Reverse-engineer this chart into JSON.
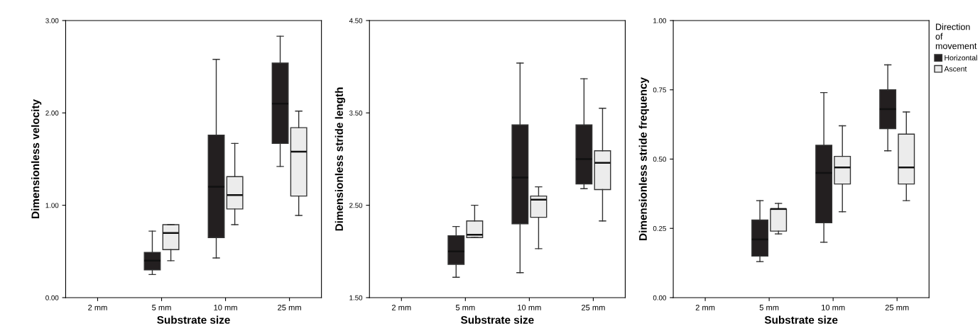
{
  "chart_data": [
    {
      "type": "box",
      "xlabel": "Substrate size",
      "ylabel": "Dimensionless velocity",
      "categories": [
        "2 mm",
        "5 mm",
        "10 mm",
        "25 mm"
      ],
      "ylim": [
        0,
        3
      ],
      "yticks": [
        {
          "value": 0,
          "label": "0.00"
        },
        {
          "value": 1,
          "label": "1.00"
        },
        {
          "value": 2,
          "label": "2.00"
        },
        {
          "value": 3,
          "label": "3.00"
        }
      ],
      "grid": false,
      "legend": false,
      "series": [
        {
          "color": "#231f20",
          "boxes": [
            null,
            {
              "low": 0.25,
              "q1": 0.3,
              "median": 0.4,
              "q3": 0.49,
              "high": 0.72
            },
            {
              "low": 0.43,
              "q1": 0.65,
              "median": 1.2,
              "q3": 1.76,
              "high": 2.58
            },
            {
              "low": 1.42,
              "q1": 1.67,
              "median": 2.1,
              "q3": 2.54,
              "high": 2.83
            }
          ]
        },
        {
          "color": "#ececec",
          "boxes": [
            null,
            {
              "low": 0.4,
              "q1": 0.52,
              "median": 0.7,
              "q3": 0.79,
              "high": 0.79
            },
            {
              "low": 0.79,
              "q1": 0.96,
              "median": 1.11,
              "q3": 1.31,
              "high": 1.67
            },
            {
              "low": 0.89,
              "q1": 1.1,
              "median": 1.58,
              "q3": 1.84,
              "high": 2.02
            }
          ]
        }
      ]
    },
    {
      "type": "box",
      "xlabel": "Substrate size",
      "ylabel": "Dimensionless stride length",
      "categories": [
        "2 mm",
        "5 mm",
        "10 mm",
        "25 mm"
      ],
      "ylim": [
        1.5,
        4.5
      ],
      "yticks": [
        {
          "value": 1.5,
          "label": "1.50"
        },
        {
          "value": 2.5,
          "label": "2.50"
        },
        {
          "value": 3.5,
          "label": "3.50"
        },
        {
          "value": 4.5,
          "label": "4.50"
        }
      ],
      "grid": false,
      "legend": false,
      "series": [
        {
          "color": "#231f20",
          "boxes": [
            null,
            {
              "low": 1.72,
              "q1": 1.86,
              "median": 2.0,
              "q3": 2.17,
              "high": 2.27
            },
            {
              "low": 1.77,
              "q1": 2.3,
              "median": 2.8,
              "q3": 3.37,
              "high": 4.04
            },
            {
              "low": 2.68,
              "q1": 2.73,
              "median": 3.0,
              "q3": 3.37,
              "high": 3.87
            }
          ]
        },
        {
          "color": "#ececec",
          "boxes": [
            null,
            {
              "low": 2.15,
              "q1": 2.15,
              "median": 2.18,
              "q3": 2.33,
              "high": 2.5
            },
            {
              "low": 2.03,
              "q1": 2.37,
              "median": 2.56,
              "q3": 2.6,
              "high": 2.7
            },
            {
              "low": 2.33,
              "q1": 2.67,
              "median": 2.96,
              "q3": 3.09,
              "high": 3.55
            }
          ]
        }
      ]
    },
    {
      "type": "box",
      "xlabel": "Substrate size",
      "ylabel": "Dimensionless stride frequency",
      "categories": [
        "2 mm",
        "5 mm",
        "10 mm",
        "25 mm"
      ],
      "ylim": [
        0,
        1
      ],
      "yticks": [
        {
          "value": 0,
          "label": "0.00"
        },
        {
          "value": 0.25,
          "label": "0.25"
        },
        {
          "value": 0.5,
          "label": "0.50"
        },
        {
          "value": 0.75,
          "label": "0.75"
        },
        {
          "value": 1,
          "label": "1.00"
        }
      ],
      "grid": false,
      "legend": "right",
      "legend_title": "Direction\nof\nmovement",
      "series": [
        {
          "name": "Horizontal",
          "color": "#231f20",
          "boxes": [
            null,
            {
              "low": 0.13,
              "q1": 0.15,
              "median": 0.21,
              "q3": 0.28,
              "high": 0.35
            },
            {
              "low": 0.2,
              "q1": 0.27,
              "median": 0.45,
              "q3": 0.55,
              "high": 0.74
            },
            {
              "low": 0.53,
              "q1": 0.61,
              "median": 0.68,
              "q3": 0.75,
              "high": 0.84
            }
          ]
        },
        {
          "name": "Ascent",
          "color": "#ececec",
          "boxes": [
            null,
            {
              "low": 0.23,
              "q1": 0.24,
              "median": 0.32,
              "q3": 0.32,
              "high": 0.34
            },
            {
              "low": 0.31,
              "q1": 0.41,
              "median": 0.47,
              "q3": 0.51,
              "high": 0.62
            },
            {
              "low": 0.35,
              "q1": 0.41,
              "median": 0.47,
              "q3": 0.59,
              "high": 0.67
            }
          ]
        }
      ]
    }
  ]
}
